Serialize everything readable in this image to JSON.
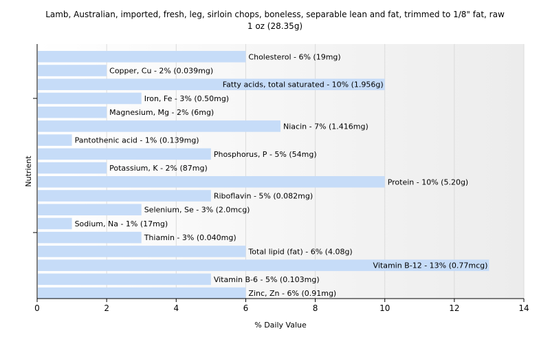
{
  "chart_data": {
    "type": "bar",
    "orientation": "horizontal",
    "title": "Lamb, Australian, imported, fresh, leg, sirloin chops, boneless, separable lean and fat, trimmed to 1/8\" fat, raw",
    "subtitle": "1 oz (28.35g)",
    "xlabel": "% Daily Value",
    "ylabel": "Nutrient",
    "xlim": [
      0,
      14
    ],
    "xticks": [
      0,
      2,
      4,
      6,
      8,
      10,
      12,
      14
    ],
    "grid": true,
    "bar_color": "#c6dcf8",
    "categories": [
      "Cholesterol",
      "Copper, Cu",
      "Fatty acids, total saturated",
      "Iron, Fe",
      "Magnesium, Mg",
      "Niacin",
      "Pantothenic acid",
      "Phosphorus, P",
      "Potassium, K",
      "Protein",
      "Riboflavin",
      "Selenium, Se",
      "Sodium, Na",
      "Thiamin",
      "Total lipid (fat)",
      "Vitamin B-12",
      "Vitamin B-6",
      "Zinc, Zn"
    ],
    "values": [
      6,
      2,
      10,
      3,
      2,
      7,
      1,
      5,
      2,
      10,
      5,
      3,
      1,
      3,
      6,
      13,
      5,
      6
    ],
    "labels": [
      "Cholesterol - 6% (19mg)",
      "Copper, Cu - 2% (0.039mg)",
      "Fatty acids, total saturated - 10% (1.956g)",
      "Iron, Fe - 3% (0.50mg)",
      "Magnesium, Mg - 2% (6mg)",
      "Niacin - 7% (1.416mg)",
      "Pantothenic acid - 1% (0.139mg)",
      "Phosphorus, P - 5% (54mg)",
      "Potassium, K - 2% (87mg)",
      "Protein - 10% (5.20g)",
      "Riboflavin - 5% (0.082mg)",
      "Selenium, Se - 3% (2.0mcg)",
      "Sodium, Na - 1% (17mg)",
      "Thiamin - 3% (0.040mg)",
      "Total lipid (fat) - 6% (4.08g)",
      "Vitamin B-12 - 13% (0.77mcg)",
      "Vitamin B-6 - 5% (0.103mg)",
      "Zinc, Zn - 6% (0.91mg)"
    ],
    "labels_inside_bar": [
      false,
      false,
      true,
      false,
      false,
      false,
      false,
      false,
      false,
      false,
      false,
      false,
      false,
      false,
      false,
      true,
      false,
      false
    ]
  }
}
